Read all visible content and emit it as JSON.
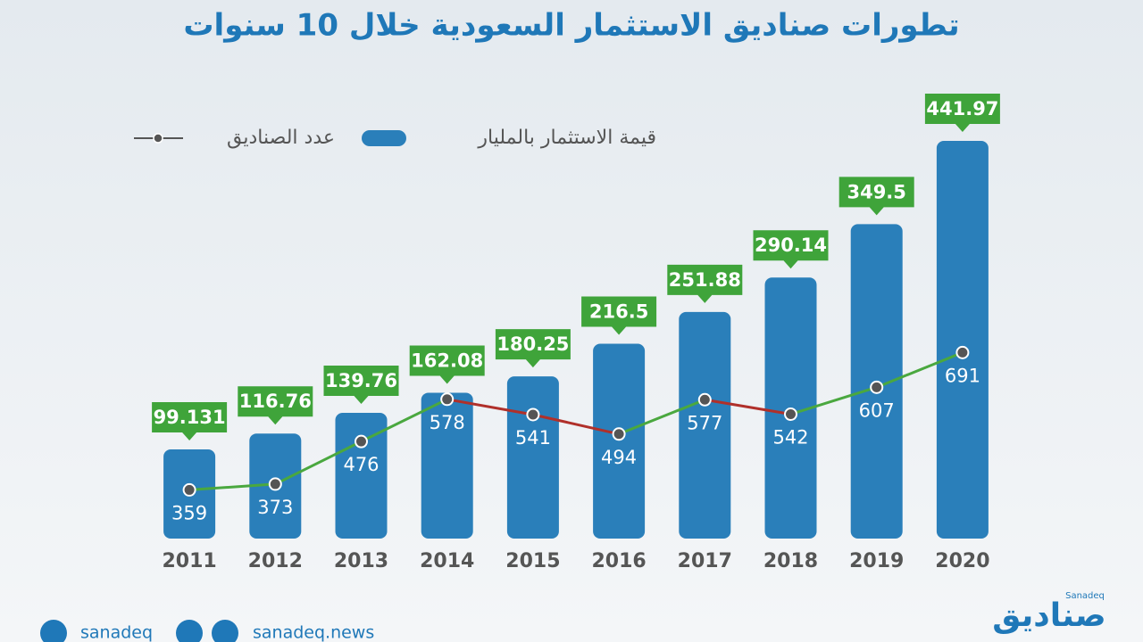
{
  "chart_data": {
    "type": "bar",
    "title": "تطورات صناديق الاستثمار السعودية خلال 10 سنوات",
    "categories": [
      "2011",
      "2012",
      "2013",
      "2014",
      "2015",
      "2016",
      "2017",
      "2018",
      "2019",
      "2020"
    ],
    "series": [
      {
        "name": "قيمة الاستثمار بالمليار",
        "type": "bar",
        "color": "#2a7fba",
        "label_color": "#3fa43a",
        "values": [
          99.131,
          116.76,
          139.76,
          162.08,
          180.25,
          216.5,
          251.88,
          290.14,
          349.5,
          441.97
        ]
      },
      {
        "name": "عدد الصناديق",
        "type": "line",
        "color": "#555555",
        "up_color": "#4aa83f",
        "down_color": "#b0302a",
        "values": [
          359,
          373,
          476,
          578,
          541,
          494,
          577,
          542,
          607,
          691
        ]
      }
    ]
  },
  "footer": {
    "twitter": "sanadeq",
    "website": "sanadeq.news",
    "logo": "صناديق",
    "logo_latin": "Sanadeq"
  }
}
